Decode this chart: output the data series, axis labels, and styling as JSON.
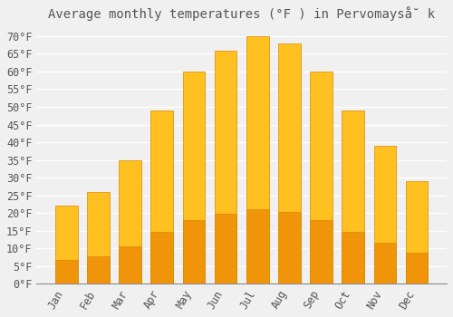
{
  "title": "Average monthly temperatures (°F ) in Pervomayså̆ k",
  "months": [
    "Jan",
    "Feb",
    "Mar",
    "Apr",
    "May",
    "Jun",
    "Jul",
    "Aug",
    "Sep",
    "Oct",
    "Nov",
    "Dec"
  ],
  "values": [
    22,
    26,
    35,
    49,
    60,
    66,
    70,
    68,
    60,
    49,
    39,
    29
  ],
  "bar_color_top": "#FFC020",
  "bar_color_bottom": "#F0950A",
  "bar_edge_color": "#D88800",
  "background_color": "#F0F0F0",
  "grid_color": "#FFFFFF",
  "text_color": "#555555",
  "ylim": [
    0,
    73
  ],
  "yticks": [
    0,
    5,
    10,
    15,
    20,
    25,
    30,
    35,
    40,
    45,
    50,
    55,
    60,
    65,
    70
  ],
  "ytick_labels": [
    "0°F",
    "5°F",
    "10°F",
    "15°F",
    "20°F",
    "25°F",
    "30°F",
    "35°F",
    "40°F",
    "45°F",
    "50°F",
    "55°F",
    "60°F",
    "65°F",
    "70°F"
  ],
  "title_fontsize": 10,
  "tick_fontsize": 8.5,
  "font_family": "monospace",
  "bar_width": 0.7
}
